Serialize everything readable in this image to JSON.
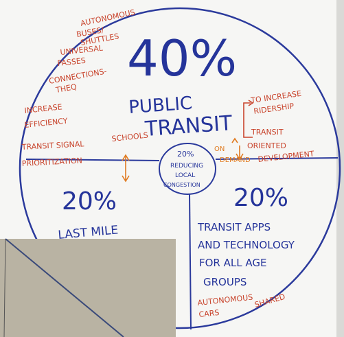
{
  "board": {
    "top": {
      "percent": "40%",
      "title_lines": [
        "PUBLIC",
        "TRANSIT"
      ]
    },
    "notes_left": [
      "AUTONOMOUS",
      "BUSES/",
      "SHUTTLES",
      "UNIVERSAL",
      "PASSES",
      "CONNECTIONS-",
      "THEQ",
      "INCREASE",
      "EFFICIENCY",
      "TRANSIT SIGNAL",
      "PRIORITIZATION"
    ],
    "schools": "SCHOOLS",
    "notes_right": [
      "TO INCREASE",
      "RIDERSHIP",
      "TRANSIT",
      "ORIENTED",
      "DEVELOPMENT"
    ],
    "on_demand": [
      "ON",
      "DEMAND"
    ],
    "center": [
      "20%",
      "REDUCING",
      "LOCAL",
      "CONGESTION"
    ],
    "left_section": {
      "percent": "20%",
      "title": "LAST MILE"
    },
    "right_section": {
      "percent": "20%",
      "title_lines": [
        "TRANSIT APPS",
        "AND TECHNOLOGY",
        "FOR ALL AGE",
        "GROUPS"
      ],
      "notes": [
        "AUTONOMOUS",
        "CARS",
        "SHARED"
      ]
    }
  }
}
